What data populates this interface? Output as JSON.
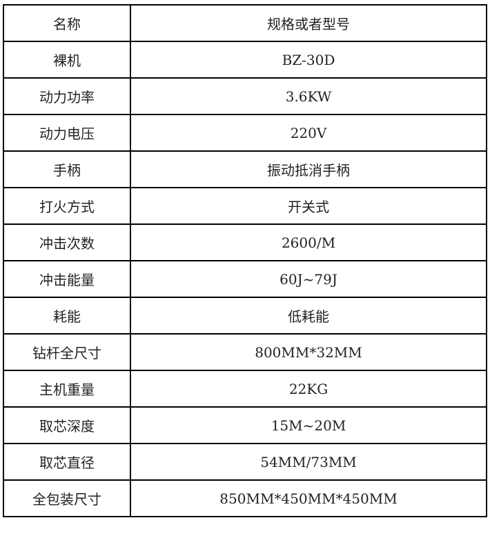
{
  "table": {
    "rows": [
      {
        "name": "名称",
        "value": "规格或者型号"
      },
      {
        "name": "裸机",
        "value": "BZ-30D"
      },
      {
        "name": "动力功率",
        "value": "3.6KW"
      },
      {
        "name": "动力电压",
        "value": "220V"
      },
      {
        "name": "手柄",
        "value": "振动抵消手柄"
      },
      {
        "name": "打火方式",
        "value": "开关式"
      },
      {
        "name": "冲击次数",
        "value": "2600/M"
      },
      {
        "name": "冲击能量",
        "value": "60J~79J"
      },
      {
        "name": "耗能",
        "value": "低耗能"
      },
      {
        "name": "钻杆全尺寸",
        "value": "800MM*32MM"
      },
      {
        "name": "主机重量",
        "value": "22KG"
      },
      {
        "name": "取芯深度",
        "value": "15M~20M"
      },
      {
        "name": "取芯直径",
        "value": "54MM/73MM"
      },
      {
        "name": "全包装尺寸",
        "value": "850MM*450MM*450MM"
      }
    ]
  }
}
